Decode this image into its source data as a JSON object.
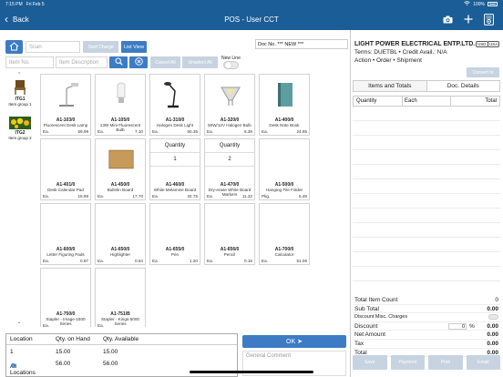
{
  "status_bar": {
    "time": "7:15 PM",
    "date": "Fri Feb 5",
    "battery": "100%"
  },
  "nav": {
    "back_label": "Back",
    "title": "POS - User CCT",
    "icons": [
      "camera-icon",
      "plus-icon",
      "document-settings-icon"
    ]
  },
  "toolbar": {
    "search_placeholder": "Scan",
    "start_charge_label": "Start Charge",
    "list_view_label": "List View",
    "item_no_placeholder": "Item No.",
    "item_desc_placeholder": "Item Description",
    "cancel_all_label": "Cancel All",
    "unselect_all_label": "Unselect All",
    "new_line_label": "New Line"
  },
  "doc_no": "Doc No. *** NEW ***",
  "groups": [
    {
      "code": "ITG1",
      "name": "Item group 1",
      "image": "chair-image"
    },
    {
      "code": "ITG2",
      "name": "Item group 2",
      "image": "flowers-image"
    }
  ],
  "tiles": [
    {
      "type": "item",
      "code": "A1-103/0",
      "desc": "Fluorescent Desk Lamp",
      "uom": "Ea.",
      "price": "59.99",
      "image": "desk-lamp"
    },
    {
      "type": "item",
      "code": "A1-105/0",
      "desc": "13W Mini Fluorescent Bulb",
      "uom": "Ea.",
      "price": "7.10",
      "image": "bulb"
    },
    {
      "type": "item",
      "code": "A1-310/0",
      "desc": "Halogen Desk Light",
      "uom": "Ea.",
      "price": "50.35",
      "image": "halogen-lamp"
    },
    {
      "type": "item",
      "code": "A1-320/0",
      "desc": "50W/12V Halogen Bulb",
      "uom": "Ea.",
      "price": "6.39",
      "image": "halogen-bulb"
    },
    {
      "type": "item",
      "code": "A1-400/0",
      "desc": "Desk Note Book",
      "uom": "Ea.",
      "price": "24.95",
      "image": "notebook"
    },
    {
      "type": "item",
      "code": "A1-401/0",
      "desc": "Desk Calendar Pad",
      "uom": "Ea.",
      "price": "15.99",
      "image": ""
    },
    {
      "type": "item",
      "code": "A1-450/0",
      "desc": "Bulletin Board",
      "uom": "Ea.",
      "price": "17.70",
      "image": "corkboard"
    },
    {
      "type": "qty",
      "qty_label": "Quantity",
      "qty": "1",
      "code": "A1-460/0",
      "desc": "White Melamine Board",
      "uom": "Ea.",
      "price": "34.75"
    },
    {
      "type": "qty",
      "qty_label": "Quantity",
      "qty": "2",
      "code": "A1-470/0",
      "desc": "Dry-erase White Board Markers",
      "uom": "Ea.",
      "price": "11.32"
    },
    {
      "type": "item",
      "code": "A1-500/0",
      "desc": "Hanging File Folder",
      "uom": "Pkg.",
      "price": "6.49",
      "image": ""
    },
    {
      "type": "item",
      "code": "A1-600/0",
      "desc": "Letter Figuring Pads",
      "uom": "Ea.",
      "price": "0.97",
      "image": ""
    },
    {
      "type": "item",
      "code": "A1-650/0",
      "desc": "Highlighter",
      "uom": "Ea.",
      "price": "0.64",
      "image": ""
    },
    {
      "type": "item",
      "code": "A1-655/0",
      "desc": "Pen",
      "uom": "Ea.",
      "price": "1.20",
      "image": ""
    },
    {
      "type": "item",
      "code": "A1-656/0",
      "desc": "Pencil",
      "uom": "Ea.",
      "price": "0.16",
      "image": ""
    },
    {
      "type": "item",
      "code": "A1-700/0",
      "desc": "Calculator",
      "uom": "Ea.",
      "price": "51.06",
      "image": ""
    },
    {
      "type": "item",
      "code": "A1-750/0",
      "desc": "Stapler - Image-1500 Series",
      "uom": "Ea.",
      "price": "",
      "image": ""
    },
    {
      "type": "item",
      "code": "A1-751/B",
      "desc": "Stapler - Kings-5000 Series",
      "uom": "Ea.",
      "price": "",
      "image": ""
    }
  ],
  "locations": {
    "headers": [
      "Location",
      "Qty. on Hand",
      "Qty. Available"
    ],
    "rows": [
      {
        "loc": "1",
        "on_hand": "15.00",
        "available": "15.00"
      },
      {
        "loc": "All Locations",
        "on_hand": "56.00",
        "available": "56.00"
      }
    ]
  },
  "ok_label": "OK ➤",
  "comment_placeholder": "General Comment",
  "customer": {
    "name": "LIGHT  POWER ELECTRICAL ENTP.LTD.",
    "badges": [
      "USD",
      "USA"
    ],
    "terms": "Terms: DUETBL • Credit Avail.: N/A",
    "action": "Action • Order • Shipment",
    "convert_label": "Convert to"
  },
  "tabs": [
    "Items and Totals",
    "Doc. Details"
  ],
  "line_headers": [
    "Quantity",
    "Each",
    "Total"
  ],
  "totals": {
    "total_item_count_label": "Total Item Count",
    "total_item_count": "0",
    "sub_total_label": "Sub Total",
    "sub_total": "0.00",
    "discount_misc_label": "Discount Misc. Charges",
    "discount_label": "Discount",
    "discount_pct": "0",
    "discount_pct_sym": "%",
    "discount": "0.00",
    "net_amount_label": "Net Amount",
    "net_amount": "0.00",
    "tax_label": "Tax",
    "tax": "0.00",
    "total_label": "Total",
    "total": "0.00"
  },
  "bottom_buttons": [
    "Save",
    "Payment",
    "Print",
    "Email"
  ]
}
